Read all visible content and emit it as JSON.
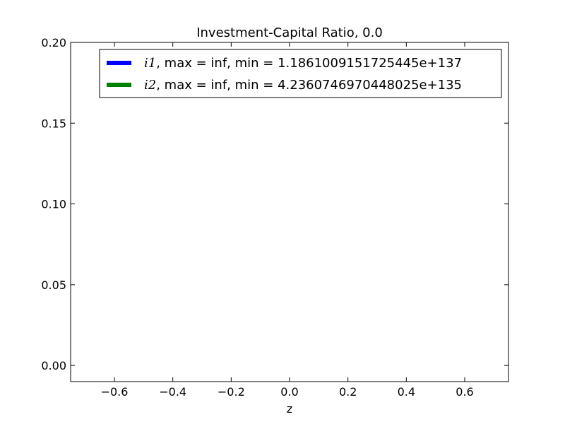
{
  "chart_data": {
    "type": "line",
    "title": "Investment-Capital Ratio, 0.0",
    "xlabel": "z",
    "ylabel": "",
    "xlim": [
      -0.75,
      0.75
    ],
    "ylim": [
      -0.01,
      0.2
    ],
    "xticks": [
      -0.6,
      -0.4,
      -0.2,
      0.0,
      0.2,
      0.4,
      0.6
    ],
    "xtick_labels": [
      "−0.6",
      "−0.4",
      "−0.2",
      "0.0",
      "0.2",
      "0.4",
      "0.6"
    ],
    "yticks": [
      0.0,
      0.05,
      0.1,
      0.15,
      0.2
    ],
    "ytick_labels": [
      "0.00",
      "0.05",
      "0.10",
      "0.15",
      "0.20"
    ],
    "grid": false,
    "legend_position": "top-right",
    "series": [
      {
        "name": "i1, max = inf, min = 1.1861009151725445e+137",
        "symbol": "i1",
        "label_rest": ", max = inf, min = 1.1861009151725445e+137",
        "color": "#0000ff",
        "x": [],
        "y": []
      },
      {
        "name": "i2, max = inf, min = 4.2360746970448025e+135",
        "symbol": "i2",
        "label_rest": ", max = inf, min = 4.2360746970448025e+135",
        "color": "#008000",
        "x": [],
        "y": []
      }
    ]
  }
}
